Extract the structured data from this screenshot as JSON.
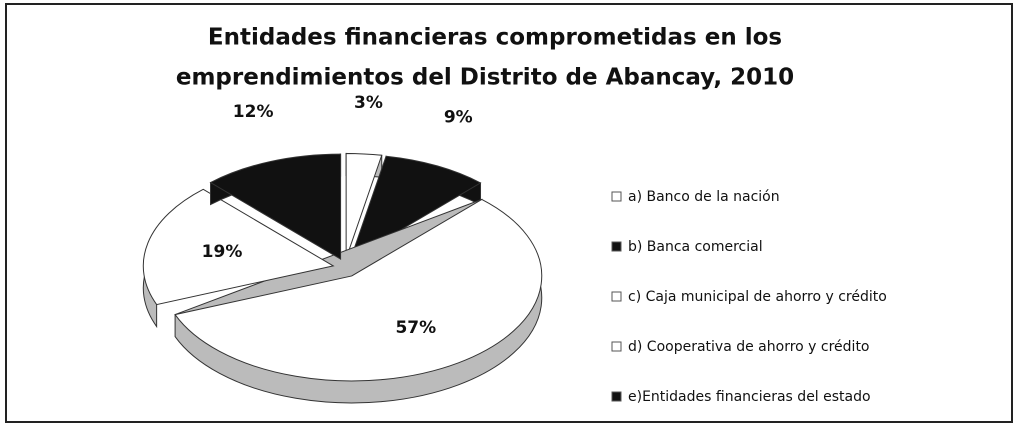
{
  "chart_data": {
    "type": "pie",
    "title": [
      "Entidades financieras  comprometidas en los",
      "emprendimientos del Distrito de Abancay, 2010"
    ],
    "categories": [
      "a) Banco de la nación",
      "b)  Banca comercial",
      "c) Caja municipal de ahorro y crédito",
      "d) Cooperativa de ahorro y crédito",
      "e)Entidades financieras del estado"
    ],
    "values": [
      3,
      9,
      57,
      19,
      12
    ],
    "value_labels": [
      "3%",
      "9%",
      "57%",
      "19%",
      "12%"
    ],
    "colors": [
      "#ffffff",
      "#111111",
      "#ffffff",
      "#ffffff",
      "#111111"
    ],
    "legend": "right"
  }
}
